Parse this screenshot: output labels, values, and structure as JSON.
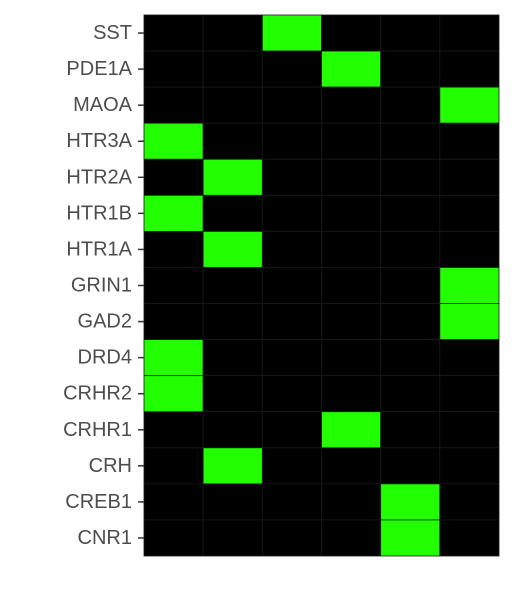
{
  "chart_data": {
    "type": "heatmap",
    "title": "",
    "xlabel": "",
    "ylabel": "",
    "columns": 6,
    "categories": [
      "SST",
      "PDE1A",
      "MAOA",
      "HTR3A",
      "HTR2A",
      "HTR1B",
      "HTR1A",
      "GRIN1",
      "GAD2",
      "DRD4",
      "CRHR2",
      "CRHR1",
      "CRH",
      "CREB1",
      "CNR1"
    ],
    "values": [
      [
        0,
        0,
        1,
        0,
        0,
        0
      ],
      [
        0,
        0,
        0,
        1,
        0,
        0
      ],
      [
        0,
        0,
        0,
        0,
        0,
        1
      ],
      [
        1,
        0,
        0,
        0,
        0,
        0
      ],
      [
        0,
        1,
        0,
        0,
        0,
        0
      ],
      [
        1,
        0,
        0,
        0,
        0,
        0
      ],
      [
        0,
        1,
        0,
        0,
        0,
        0
      ],
      [
        0,
        0,
        0,
        0,
        0,
        1
      ],
      [
        0,
        0,
        0,
        0,
        0,
        1
      ],
      [
        1,
        0,
        0,
        0,
        0,
        0
      ],
      [
        1,
        0,
        0,
        0,
        0,
        0
      ],
      [
        0,
        0,
        0,
        1,
        0,
        0
      ],
      [
        0,
        1,
        0,
        0,
        0,
        0
      ],
      [
        0,
        0,
        0,
        0,
        1,
        0
      ],
      [
        0,
        0,
        0,
        0,
        1,
        0
      ]
    ],
    "colors": {
      "off": "#000000",
      "on": "#22ff00",
      "grid": "#1a1a1a",
      "tick": "#333333"
    },
    "grid": true,
    "legend": "none"
  }
}
